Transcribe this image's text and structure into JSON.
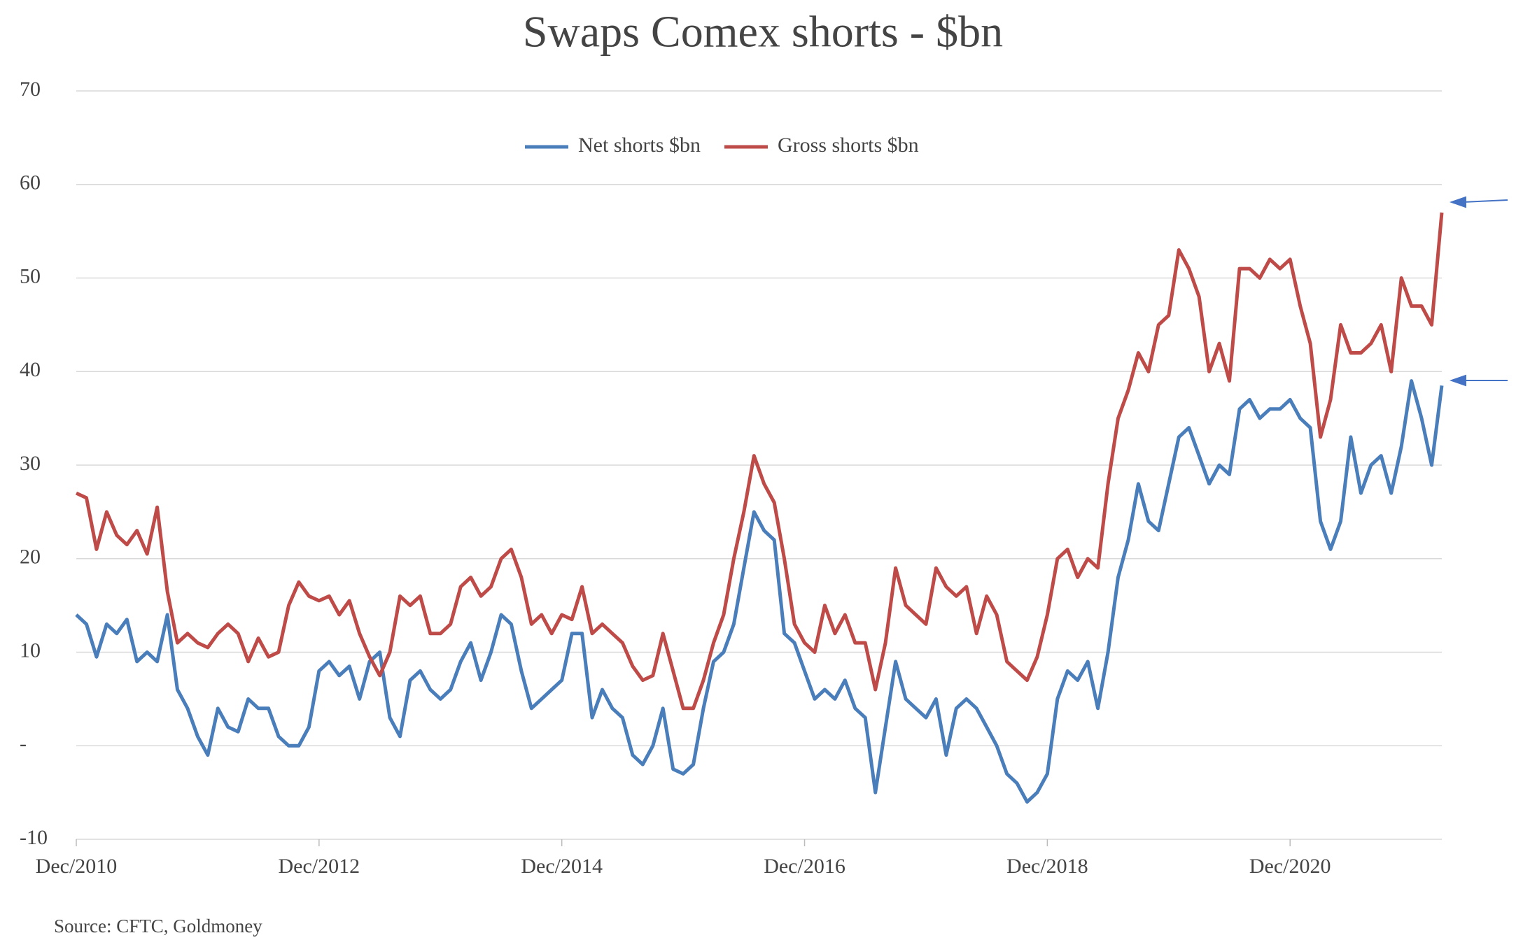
{
  "chart_data": {
    "type": "line",
    "title": "Swaps Comex shorts - $bn",
    "x": [
      "2010-12",
      "2011-01",
      "2011-02",
      "2011-03",
      "2011-04",
      "2011-05",
      "2011-06",
      "2011-07",
      "2011-08",
      "2011-09",
      "2011-10",
      "2011-11",
      "2011-12",
      "2012-01",
      "2012-02",
      "2012-03",
      "2012-04",
      "2012-05",
      "2012-06",
      "2012-07",
      "2012-08",
      "2012-09",
      "2012-10",
      "2012-11",
      "2012-12",
      "2013-01",
      "2013-02",
      "2013-03",
      "2013-04",
      "2013-05",
      "2013-06",
      "2013-07",
      "2013-08",
      "2013-09",
      "2013-10",
      "2013-11",
      "2013-12",
      "2014-01",
      "2014-02",
      "2014-03",
      "2014-04",
      "2014-05",
      "2014-06",
      "2014-07",
      "2014-08",
      "2014-09",
      "2014-10",
      "2014-11",
      "2014-12",
      "2015-01",
      "2015-02",
      "2015-03",
      "2015-04",
      "2015-05",
      "2015-06",
      "2015-07",
      "2015-08",
      "2015-09",
      "2015-10",
      "2015-11",
      "2015-12",
      "2016-01",
      "2016-02",
      "2016-03",
      "2016-04",
      "2016-05",
      "2016-06",
      "2016-07",
      "2016-08",
      "2016-09",
      "2016-10",
      "2016-11",
      "2016-12",
      "2017-01",
      "2017-02",
      "2017-03",
      "2017-04",
      "2017-05",
      "2017-06",
      "2017-07",
      "2017-08",
      "2017-09",
      "2017-10",
      "2017-11",
      "2017-12",
      "2018-01",
      "2018-02",
      "2018-03",
      "2018-04",
      "2018-05",
      "2018-06",
      "2018-07",
      "2018-08",
      "2018-09",
      "2018-10",
      "2018-11",
      "2018-12",
      "2019-01",
      "2019-02",
      "2019-03",
      "2019-04",
      "2019-05",
      "2019-06",
      "2019-07",
      "2019-08",
      "2019-09",
      "2019-10",
      "2019-11",
      "2019-12",
      "2020-01",
      "2020-02",
      "2020-03",
      "2020-04",
      "2020-05",
      "2020-06",
      "2020-07",
      "2020-08",
      "2020-09",
      "2020-10",
      "2020-11",
      "2020-12",
      "2021-01",
      "2021-02",
      "2021-03",
      "2021-04",
      "2021-05",
      "2021-06",
      "2021-07",
      "2021-08",
      "2021-09",
      "2021-10",
      "2021-11",
      "2021-12",
      "2022-01",
      "2022-02",
      "2022-03"
    ],
    "series": [
      {
        "name": "Net shorts $bn",
        "color": "#4a7ebb",
        "values": [
          14,
          13,
          9.5,
          13,
          12,
          13.5,
          9,
          10,
          9,
          14,
          6,
          4,
          1,
          -1,
          4,
          2,
          1.5,
          5,
          4,
          4,
          1,
          0,
          0,
          2,
          8,
          9,
          7.5,
          8.5,
          5,
          9,
          10,
          3,
          1,
          7,
          8,
          6,
          5,
          6,
          9,
          11,
          7,
          10,
          14,
          13,
          8,
          4,
          5,
          6,
          7,
          12,
          12,
          3,
          6,
          4,
          3,
          -1,
          -2,
          0,
          4,
          -2.5,
          -3,
          -2,
          4,
          9,
          10,
          13,
          19,
          25,
          23,
          22,
          12,
          11,
          8,
          5,
          6,
          5,
          7,
          4,
          3,
          -5,
          2,
          9,
          5,
          4,
          3,
          5,
          -1,
          4,
          5,
          4,
          2,
          0,
          -3,
          -4,
          -6,
          -5,
          -3,
          5,
          8,
          7,
          9,
          4,
          10,
          18,
          22,
          28,
          24,
          23,
          28,
          33,
          34,
          31,
          28,
          30,
          29,
          36,
          37,
          35,
          36,
          36,
          37,
          35,
          34,
          24,
          21,
          24,
          33,
          27,
          30,
          31,
          27,
          32,
          39,
          35,
          30,
          38.5
        ]
      },
      {
        "name": "Gross shorts $bn",
        "color": "#be4b48",
        "values": [
          27,
          26.5,
          21,
          25,
          22.5,
          21.5,
          23,
          20.5,
          25.5,
          16.5,
          11,
          12,
          11,
          10.5,
          12,
          13,
          12,
          9,
          11.5,
          9.5,
          10,
          15,
          17.5,
          16,
          15.5,
          16,
          14,
          15.5,
          12,
          9.5,
          7.5,
          10,
          16,
          15,
          16,
          12,
          12,
          13,
          17,
          18,
          16,
          17,
          20,
          21,
          18,
          13,
          14,
          12,
          14,
          13.5,
          17,
          12,
          13,
          12,
          11,
          8.5,
          7,
          7.5,
          12,
          8,
          4,
          4,
          7,
          11,
          14,
          20,
          25,
          31,
          28,
          26,
          20,
          13,
          11,
          10,
          15,
          12,
          14,
          11,
          11,
          6,
          11,
          19,
          15,
          14,
          13,
          19,
          17,
          16,
          17,
          12,
          16,
          14,
          9,
          8,
          7,
          9.5,
          14,
          20,
          21,
          18,
          20,
          19,
          28,
          35,
          38,
          42,
          40,
          45,
          46,
          53,
          51,
          48,
          40,
          43,
          39,
          51,
          51,
          50,
          52,
          51,
          52,
          47,
          43,
          33,
          37,
          45,
          42,
          42,
          43,
          45,
          40,
          50,
          47,
          47,
          45,
          57
        ]
      }
    ],
    "xticks": [
      {
        "value": "2010-12",
        "label": "Dec/2010"
      },
      {
        "value": "2012-12",
        "label": "Dec/2012"
      },
      {
        "value": "2014-12",
        "label": "Dec/2014"
      },
      {
        "value": "2016-12",
        "label": "Dec/2016"
      },
      {
        "value": "2018-12",
        "label": "Dec/2018"
      },
      {
        "value": "2020-12",
        "label": "Dec/2020"
      }
    ],
    "ylim": [
      -10,
      70
    ],
    "yticks": [
      -10,
      {
        "value": 0,
        "label": "-"
      },
      10,
      20,
      30,
      40,
      50,
      60,
      70
    ],
    "grid": true,
    "legend": "top",
    "source": "Source: CFTC, Goldmoney"
  }
}
